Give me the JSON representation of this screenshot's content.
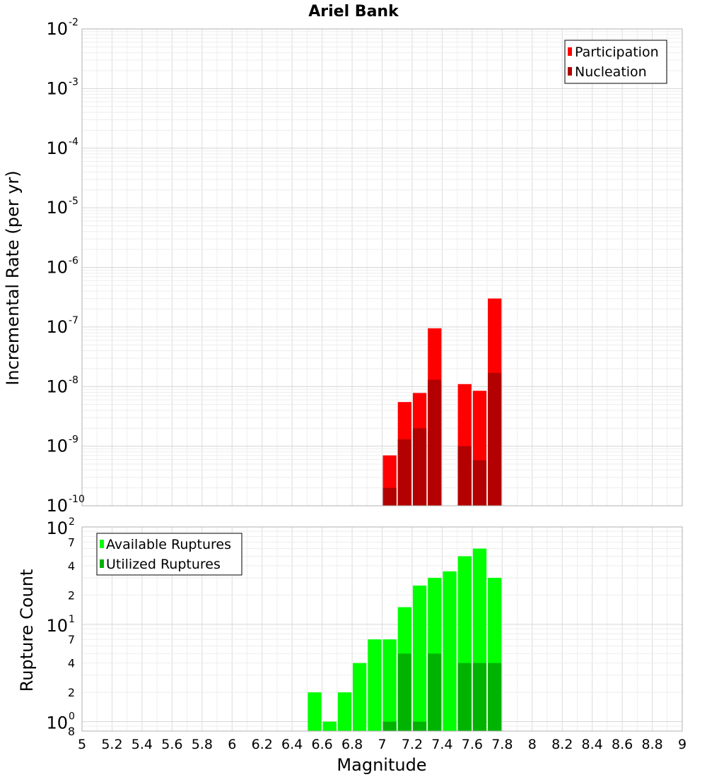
{
  "chart_data": [
    {
      "type": "bar",
      "title": "Ariel Bank",
      "xlabel": "Magnitude",
      "ylabel": "Incremental Rate (per yr)",
      "yscale": "log",
      "ylim": [
        1e-10,
        0.01
      ],
      "xlim": [
        5,
        9
      ],
      "grid": true,
      "legend_position": "top-right",
      "bin_width": 0.1,
      "y_ticks": [
        {
          "base": "10",
          "exp": "-10",
          "value": 1e-10
        },
        {
          "base": "10",
          "exp": "-9",
          "value": 1e-09
        },
        {
          "base": "10",
          "exp": "-8",
          "value": 1e-08
        },
        {
          "base": "10",
          "exp": "-7",
          "value": 1e-07
        },
        {
          "base": "10",
          "exp": "-6",
          "value": 1e-06
        },
        {
          "base": "10",
          "exp": "-5",
          "value": 1e-05
        },
        {
          "base": "10",
          "exp": "-4",
          "value": 0.0001
        },
        {
          "base": "10",
          "exp": "-3",
          "value": 0.001
        },
        {
          "base": "10",
          "exp": "-2",
          "value": 0.01
        }
      ],
      "series": [
        {
          "name": "Participation",
          "color": "#ff0000",
          "points": [
            {
              "x": 7.05,
              "y": 7e-10
            },
            {
              "x": 7.15,
              "y": 5.5e-09
            },
            {
              "x": 7.25,
              "y": 7.8e-09
            },
            {
              "x": 7.35,
              "y": 9.5e-08
            },
            {
              "x": 7.55,
              "y": 1.1e-08
            },
            {
              "x": 7.65,
              "y": 8.5e-09
            },
            {
              "x": 7.75,
              "y": 3e-07
            }
          ]
        },
        {
          "name": "Nucleation",
          "color": "#b30000",
          "points": [
            {
              "x": 7.05,
              "y": 2e-10
            },
            {
              "x": 7.15,
              "y": 1.3e-09
            },
            {
              "x": 7.25,
              "y": 2e-09
            },
            {
              "x": 7.35,
              "y": 1.3e-08
            },
            {
              "x": 7.55,
              "y": 1e-09
            },
            {
              "x": 7.65,
              "y": 5.8e-10
            },
            {
              "x": 7.75,
              "y": 1.7e-08
            }
          ]
        }
      ]
    },
    {
      "type": "bar",
      "xlabel": "Magnitude",
      "ylabel": "Rupture Count",
      "yscale": "log",
      "ylim": [
        0.8,
        100
      ],
      "xlim": [
        5,
        9
      ],
      "grid": true,
      "legend_position": "top-left",
      "bin_width": 0.1,
      "x_ticks": [
        "5",
        "5.2",
        "5.4",
        "5.6",
        "5.8",
        "6",
        "6.2",
        "6.4",
        "6.6",
        "6.8",
        "7",
        "7.2",
        "7.4",
        "7.6",
        "7.8",
        "8",
        "8.2",
        "8.4",
        "8.6",
        "8.8",
        "9"
      ],
      "y_major_ticks": [
        {
          "base": "10",
          "exp": "0",
          "value": 1
        },
        {
          "base": "10",
          "exp": "1",
          "value": 10
        },
        {
          "base": "10",
          "exp": "2",
          "value": 100
        }
      ],
      "y_minor_ticks": [
        {
          "label": "8",
          "value": 0.8
        },
        {
          "label": "2",
          "value": 2
        },
        {
          "label": "4",
          "value": 4
        },
        {
          "label": "7",
          "value": 7
        },
        {
          "label": "2",
          "value": 20
        },
        {
          "label": "4",
          "value": 40
        },
        {
          "label": "7",
          "value": 70
        }
      ],
      "series": [
        {
          "name": "Available Ruptures",
          "color": "#00ff00",
          "points": [
            {
              "x": 6.55,
              "y": 2
            },
            {
              "x": 6.65,
              "y": 1
            },
            {
              "x": 6.75,
              "y": 2
            },
            {
              "x": 6.85,
              "y": 4
            },
            {
              "x": 6.95,
              "y": 7
            },
            {
              "x": 7.05,
              "y": 7
            },
            {
              "x": 7.15,
              "y": 15
            },
            {
              "x": 7.25,
              "y": 25
            },
            {
              "x": 7.35,
              "y": 30
            },
            {
              "x": 7.45,
              "y": 35
            },
            {
              "x": 7.55,
              "y": 50
            },
            {
              "x": 7.65,
              "y": 60
            },
            {
              "x": 7.75,
              "y": 30
            }
          ]
        },
        {
          "name": "Utilized Ruptures",
          "color": "#00b300",
          "points": [
            {
              "x": 7.05,
              "y": 1
            },
            {
              "x": 7.15,
              "y": 5
            },
            {
              "x": 7.25,
              "y": 1
            },
            {
              "x": 7.35,
              "y": 5
            },
            {
              "x": 7.55,
              "y": 4
            },
            {
              "x": 7.65,
              "y": 4
            },
            {
              "x": 7.75,
              "y": 4
            }
          ]
        }
      ]
    }
  ]
}
